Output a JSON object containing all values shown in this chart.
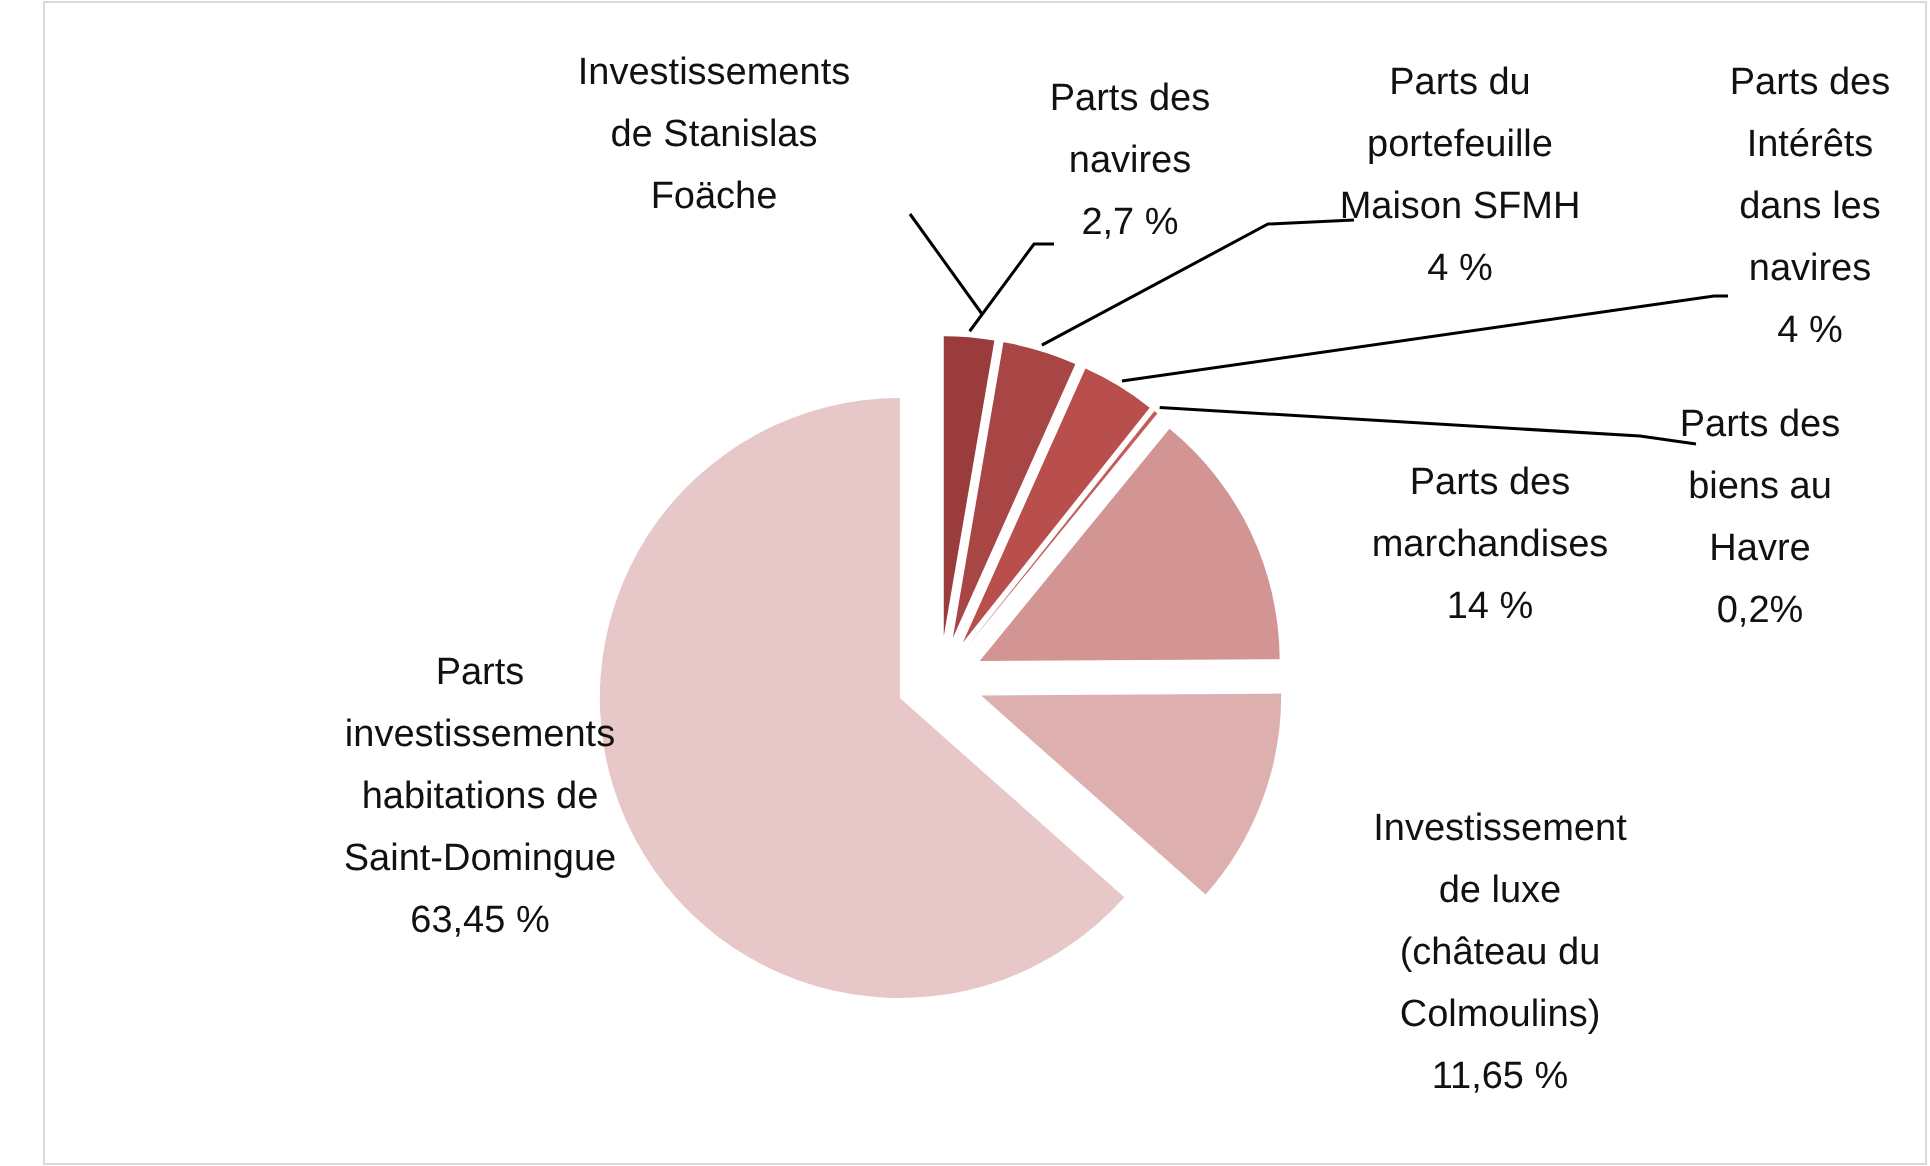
{
  "chart_data": {
    "type": "pie",
    "title": "Investissements de Stanislas Foäche",
    "categories": [
      "Parts des navires",
      "Parts du portefeuille Maison SFMH",
      "Parts des Intérêts dans les navires",
      "Parts des biens au Havre",
      "Parts des marchandises",
      "Investissement de luxe (château du Colmoulins)",
      "Parts investissements habitations de Saint-Domingue"
    ],
    "values": [
      2.7,
      4,
      4,
      0.2,
      14,
      11.65,
      63.45
    ],
    "value_labels": [
      "2,7 %",
      "4 %",
      "4 %",
      "0,2%",
      "14 %",
      "11,65 %",
      "63,45 %"
    ],
    "colors": [
      "#9b3c3c",
      "#a84545",
      "#b84f4d",
      "#c25d5b",
      "#d39494",
      "#deafaf",
      "#e7c7c7"
    ]
  }
}
